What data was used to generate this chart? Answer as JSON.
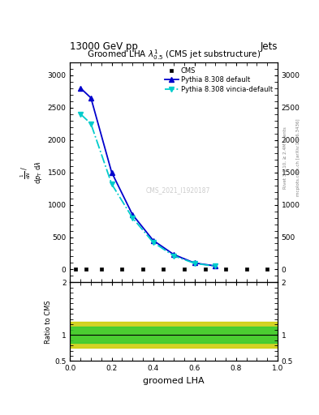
{
  "title": "13000 GeV pp",
  "title_right": "Jets",
  "plot_title": "Groomed LHA $\\lambda^{1}_{0.5}$ (CMS jet substructure)",
  "xlabel": "groomed LHA",
  "ylabel_main": "$\\frac{1}{\\mathrm{d}N}$ / $\\mathrm{d}p_\\mathrm{T}$ $\\mathrm{d}\\lambda$",
  "ylabel_ratio": "Ratio to CMS",
  "rivet_label": "Rivet 3.1.10, ≥ 2.4M events",
  "mcplots_label": "mcplots.cern.ch [arXiv:1306.3436]",
  "watermark": "CMS_2021_I1920187",
  "cms_x": [
    0.025,
    0.075,
    0.15,
    0.25,
    0.35,
    0.45,
    0.55,
    0.65,
    0.75,
    0.85,
    0.95
  ],
  "cms_y": [
    0,
    0,
    0,
    0,
    0,
    0,
    0,
    0,
    0,
    0,
    0
  ],
  "pythia_default_x": [
    0.05,
    0.1,
    0.2,
    0.3,
    0.4,
    0.5,
    0.6,
    0.7
  ],
  "pythia_default_y": [
    2800,
    2650,
    1500,
    850,
    450,
    230,
    100,
    55
  ],
  "pythia_vincia_x": [
    0.05,
    0.1,
    0.2,
    0.3,
    0.4,
    0.5,
    0.6,
    0.7
  ],
  "pythia_vincia_y": [
    2400,
    2250,
    1320,
    800,
    420,
    210,
    95,
    50
  ],
  "bin_edges": [
    0.0,
    0.05,
    0.1,
    0.2,
    0.3,
    0.4,
    0.5,
    0.6,
    0.7,
    0.8,
    0.9,
    1.0
  ],
  "ratio_green_low": 0.85,
  "ratio_green_high": 1.15,
  "ratio_yellow_low": 0.75,
  "ratio_yellow_high": 1.25,
  "ylim_main": [
    -200,
    3200
  ],
  "ylim_ratio": [
    0.5,
    2.0
  ],
  "yticks_main": [
    0,
    500,
    1000,
    1500,
    2000,
    2500,
    3000
  ],
  "yticks_ratio": [
    0.5,
    1.0,
    1.5,
    2.0
  ],
  "xticks": [
    0.0,
    0.2,
    0.4,
    0.6,
    0.8,
    1.0
  ],
  "color_cms": "#000000",
  "color_pythia_default": "#0000cc",
  "color_pythia_vincia": "#00cccc",
  "color_green_band": "#33cc33",
  "color_yellow_band": "#cccc00",
  "background_color": "#ffffff"
}
